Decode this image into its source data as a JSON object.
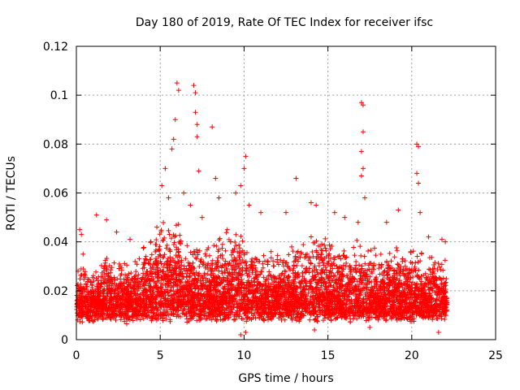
{
  "chart_data": {
    "type": "scatter",
    "title": "Day 180 of 2019, Rate Of TEC Index for receiver ifsc",
    "xlabel": "GPS time / hours",
    "ylabel": "ROTI / TECUs",
    "xlim": [
      0,
      25
    ],
    "ylim": [
      0,
      0.12
    ],
    "x_ticks": [
      "0",
      "5",
      "10",
      "15",
      "20",
      "25"
    ],
    "y_ticks": [
      "0",
      "0.02",
      "0.04",
      "0.06",
      "0.08",
      "0.1",
      "0.12"
    ],
    "x_tick_values": [
      0,
      5,
      10,
      15,
      20,
      25
    ],
    "y_tick_values": [
      0,
      0.02,
      0.04,
      0.06,
      0.08,
      0.1,
      0.12
    ],
    "grid": true,
    "marker": "+",
    "marker_color": "#ff0000",
    "data_range_x": [
      0,
      22.1
    ],
    "series": [
      {
        "name": "ROTI",
        "points": [
          [
            0.1,
            0.028
          ],
          [
            0.2,
            0.045
          ],
          [
            0.3,
            0.043
          ],
          [
            0.4,
            0.035
          ],
          [
            1.2,
            0.051
          ],
          [
            1.8,
            0.049
          ],
          [
            2.4,
            0.044
          ],
          [
            3.2,
            0.041
          ],
          [
            4.8,
            0.046
          ],
          [
            5.1,
            0.063
          ],
          [
            5.3,
            0.07
          ],
          [
            5.5,
            0.058
          ],
          [
            5.7,
            0.078
          ],
          [
            5.8,
            0.082
          ],
          [
            5.9,
            0.09
          ],
          [
            6.0,
            0.105
          ],
          [
            6.1,
            0.102
          ],
          [
            6.4,
            0.06
          ],
          [
            6.8,
            0.055
          ],
          [
            7.0,
            0.104
          ],
          [
            7.1,
            0.101
          ],
          [
            7.1,
            0.093
          ],
          [
            7.2,
            0.088
          ],
          [
            7.2,
            0.083
          ],
          [
            7.3,
            0.069
          ],
          [
            7.5,
            0.05
          ],
          [
            8.1,
            0.087
          ],
          [
            8.3,
            0.066
          ],
          [
            8.5,
            0.058
          ],
          [
            9.0,
            0.045
          ],
          [
            9.5,
            0.06
          ],
          [
            9.8,
            0.063
          ],
          [
            10.0,
            0.07
          ],
          [
            10.1,
            0.075
          ],
          [
            10.3,
            0.055
          ],
          [
            11.0,
            0.052
          ],
          [
            12.5,
            0.052
          ],
          [
            13.1,
            0.066
          ],
          [
            14.0,
            0.056
          ],
          [
            14.3,
            0.055
          ],
          [
            15.4,
            0.052
          ],
          [
            16.0,
            0.05
          ],
          [
            16.8,
            0.048
          ],
          [
            17.0,
            0.097
          ],
          [
            17.1,
            0.096
          ],
          [
            17.1,
            0.085
          ],
          [
            17.0,
            0.077
          ],
          [
            17.1,
            0.07
          ],
          [
            17.0,
            0.067
          ],
          [
            17.2,
            0.058
          ],
          [
            18.5,
            0.048
          ],
          [
            19.2,
            0.053
          ],
          [
            20.3,
            0.08
          ],
          [
            20.4,
            0.079
          ],
          [
            20.3,
            0.068
          ],
          [
            20.4,
            0.064
          ],
          [
            20.5,
            0.052
          ],
          [
            21.0,
            0.042
          ],
          [
            21.8,
            0.041
          ],
          [
            22.0,
            0.04
          ],
          [
            3.0,
            0.0065
          ],
          [
            9.8,
            0.002
          ],
          [
            10.1,
            0.003
          ],
          [
            14.2,
            0.004
          ],
          [
            17.5,
            0.005
          ],
          [
            21.6,
            0.003
          ]
        ]
      }
    ]
  }
}
